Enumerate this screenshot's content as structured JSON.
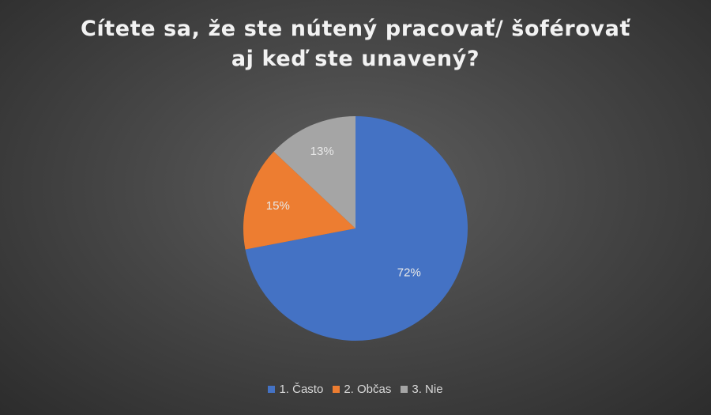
{
  "chart_data": {
    "type": "pie",
    "title_lines": [
      "Cítete sa, že ste nútený pracovať/ šoférovať",
      "aj keď ste unavený?"
    ],
    "categories": [
      "1. Často",
      "2. Občas",
      "3. Nie"
    ],
    "values": [
      72,
      15,
      13
    ],
    "data_labels": [
      "72%",
      "15%",
      "13%"
    ],
    "colors": [
      "#4472c4",
      "#ed7d31",
      "#a5a5a5"
    ],
    "legend_position": "bottom"
  }
}
